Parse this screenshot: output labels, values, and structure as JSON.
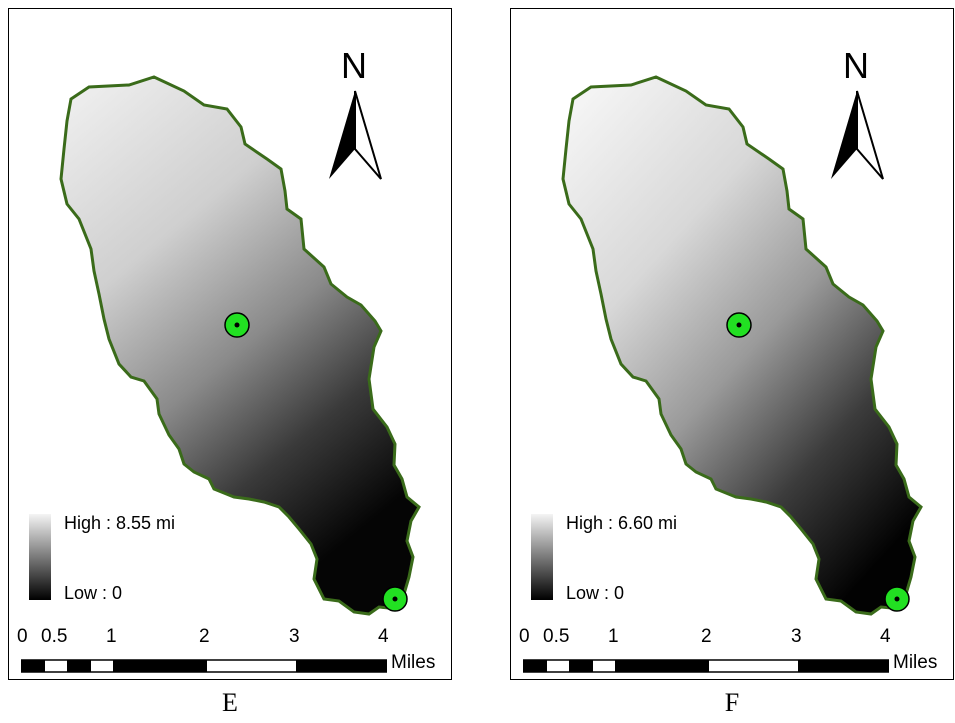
{
  "panels": [
    {
      "id": "E",
      "caption": "E",
      "legend": {
        "high": "High : 8.55 mi",
        "low": "Low : 0"
      },
      "north_label": "N",
      "scale": {
        "ticks": [
          "0",
          "0.5",
          "1",
          "2",
          "3",
          "4"
        ],
        "unit": "Miles"
      }
    },
    {
      "id": "F",
      "caption": "F",
      "legend": {
        "high": "High : 6.60 mi",
        "low": "Low : 0"
      },
      "north_label": "N",
      "scale": {
        "ticks": [
          "0",
          "0.5",
          "1",
          "2",
          "3",
          "4"
        ],
        "unit": "Miles"
      }
    }
  ],
  "colors": {
    "boundary": "#3a6b1a",
    "outlet_marker": "#22e022",
    "ramp_high": "#f4f4f4",
    "ramp_low": "#000000"
  }
}
